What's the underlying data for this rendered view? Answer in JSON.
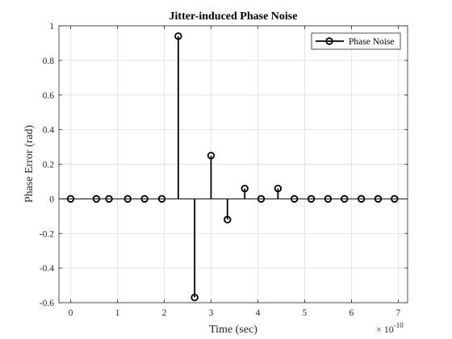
{
  "chart_data": {
    "type": "stem",
    "title": "Jitter-induced Phase Noise",
    "xlabel": "Time (sec)",
    "ylabel": "Phase Error (rad)",
    "x_multiplier_base": "× 10",
    "x_multiplier_exp": "-10",
    "xlim": [
      -0.25,
      7.2
    ],
    "ylim": [
      -0.6,
      1.0
    ],
    "xticks": [
      0,
      1,
      2,
      3,
      4,
      5,
      6,
      7
    ],
    "yticks": [
      -0.6,
      -0.4,
      -0.2,
      0,
      0.2,
      0.4,
      0.6,
      0.8,
      1
    ],
    "xtick_labels": [
      "0",
      "1",
      "2",
      "3",
      "4",
      "5",
      "6",
      "7"
    ],
    "ytick_labels": [
      "-0.6",
      "-0.4",
      "-0.2",
      "0",
      "0.2",
      "0.4",
      "0.6",
      "0.8",
      "1"
    ],
    "grid": true,
    "legend_position": "top-right",
    "series": [
      {
        "name": "Phase Noise",
        "color": "#000000",
        "marker": "circle-open",
        "x": [
          0,
          0.55,
          0.82,
          1.22,
          1.58,
          1.95,
          2.3,
          2.65,
          3.0,
          3.35,
          3.72,
          4.07,
          4.43,
          4.78,
          5.14,
          5.5,
          5.85,
          6.21,
          6.57,
          6.92
        ],
        "y": [
          0,
          0,
          0,
          0,
          0,
          0,
          0.94,
          -0.57,
          0.25,
          -0.12,
          0.06,
          0,
          0.06,
          0,
          0,
          0,
          0,
          0,
          0,
          0
        ]
      }
    ]
  }
}
